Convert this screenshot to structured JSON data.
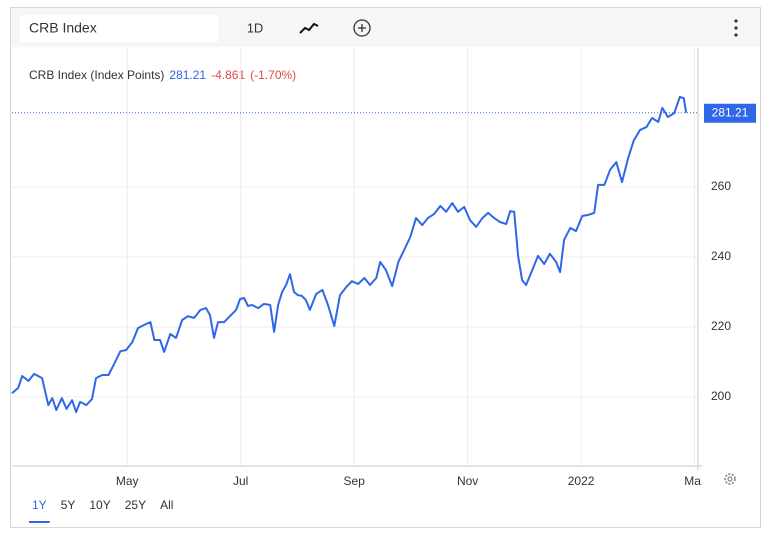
{
  "toolbar": {
    "symbol": "CRB Index",
    "interval": "1D"
  },
  "ranges": {
    "items": [
      "1Y",
      "5Y",
      "10Y",
      "25Y",
      "All"
    ],
    "selected": 0
  },
  "chart_data": {
    "type": "line",
    "series": [
      {
        "name": "CRB Index (Index Points)",
        "color": "#2f67e8",
        "x": [
          1.97,
          2.08,
          2.15,
          2.26,
          2.36,
          2.5,
          2.61,
          2.68,
          2.75,
          2.85,
          2.93,
          3.03,
          3.1,
          3.17,
          3.28,
          3.38,
          3.45,
          3.56,
          3.67,
          3.77,
          3.88,
          3.98,
          4.09,
          4.19,
          4.3,
          4.41,
          4.48,
          4.58,
          4.65,
          4.76,
          4.86,
          4.97,
          5.07,
          5.18,
          5.29,
          5.39,
          5.46,
          5.53,
          5.6,
          5.71,
          5.81,
          5.92,
          5.99,
          6.06,
          6.13,
          6.2,
          6.31,
          6.41,
          6.52,
          6.59,
          6.66,
          6.73,
          6.8,
          6.87,
          6.94,
          7.01,
          7.08,
          7.15,
          7.22,
          7.33,
          7.44,
          7.54,
          7.65,
          7.75,
          7.86,
          7.96,
          8.07,
          8.18,
          8.28,
          8.39,
          8.46,
          8.56,
          8.67,
          8.78,
          8.88,
          8.99,
          9.09,
          9.2,
          9.3,
          9.41,
          9.52,
          9.62,
          9.73,
          9.83,
          9.94,
          10.04,
          10.15,
          10.26,
          10.36,
          10.47,
          10.57,
          10.68,
          10.75,
          10.82,
          10.89,
          10.96,
          11.03,
          11.14,
          11.24,
          11.35,
          11.45,
          11.56,
          11.63,
          11.7,
          11.81,
          11.91,
          12.02,
          12.12,
          12.23,
          12.3,
          12.41,
          12.51,
          12.62,
          12.72,
          12.83,
          12.93,
          13.04,
          13.15,
          13.25,
          13.36,
          13.43,
          13.53,
          13.64,
          13.74,
          13.81,
          13.85
        ],
        "values": [
          201.1,
          202.6,
          206,
          204.6,
          206.6,
          205.4,
          197.7,
          199.7,
          196.3,
          199.7,
          196.6,
          199.1,
          195.7,
          198.6,
          197.7,
          199.4,
          205.4,
          206.3,
          206.3,
          209.4,
          213.1,
          213.4,
          215.7,
          219.7,
          220.6,
          221.4,
          216.3,
          216.3,
          212.9,
          218,
          216.9,
          222,
          223.1,
          222.6,
          224.9,
          225.4,
          223.4,
          216.9,
          221.4,
          221.4,
          223.1,
          224.9,
          228,
          228.3,
          226,
          226.3,
          225.4,
          226.6,
          226.3,
          218.6,
          226.3,
          230,
          232,
          235.1,
          230,
          229.1,
          228.9,
          227.7,
          224.9,
          229.4,
          230.6,
          226.3,
          220.3,
          229.1,
          231.4,
          233.1,
          232.3,
          234,
          232,
          234,
          238.6,
          236.3,
          231.7,
          238.6,
          242,
          245.7,
          251.1,
          249.1,
          251.1,
          252.3,
          254.6,
          252.9,
          255.4,
          252.9,
          254.3,
          250.6,
          248.6,
          251.1,
          252.6,
          251.1,
          250,
          249.4,
          253.1,
          252.9,
          240.3,
          233.4,
          232,
          236.3,
          240.3,
          238,
          240.9,
          238.6,
          235.7,
          244.9,
          248.3,
          247.4,
          251.7,
          252,
          252.6,
          260.6,
          260.6,
          264.9,
          267.1,
          261.4,
          268.3,
          273.4,
          276.3,
          277.1,
          279.7,
          278.6,
          282.6,
          280,
          281.1,
          285.7,
          285.4,
          281.21
        ]
      }
    ],
    "last_value": 281.21,
    "change": -4.861,
    "change_percent_label": "(-1.70%)",
    "xlim": [
      1.97,
      14.06
    ],
    "xticks": [
      {
        "value": 4,
        "label": "May"
      },
      {
        "value": 6,
        "label": "Jul"
      },
      {
        "value": 8,
        "label": "Sep"
      },
      {
        "value": 10,
        "label": "Nov"
      },
      {
        "value": 12,
        "label": "2022"
      },
      {
        "value": 14,
        "label": "Mar"
      }
    ],
    "ylim": [
      180.3,
      299.7
    ],
    "yticks": [
      200,
      220,
      240,
      260
    ],
    "grid": true
  }
}
